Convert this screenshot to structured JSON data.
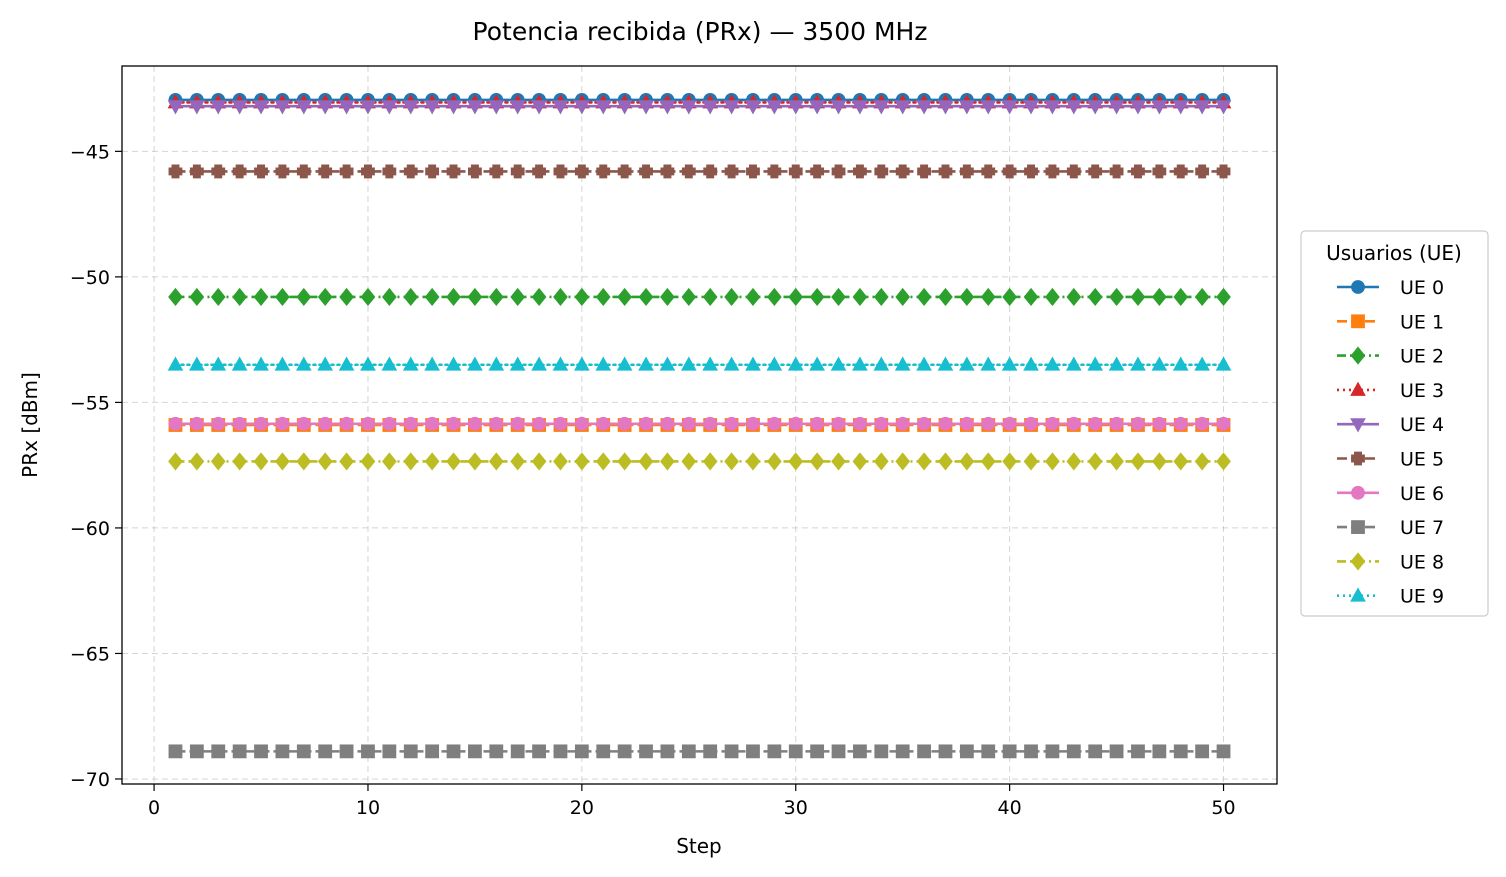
{
  "chart_data": {
    "type": "line",
    "title": "Potencia recibida (PRx) — 3500 MHz",
    "xlabel": "Step",
    "ylabel": "PRx [dBm]",
    "xlim": [
      -1.5,
      52.5
    ],
    "ylim": [
      -70.2,
      -41.6
    ],
    "xticks": [
      0,
      10,
      20,
      30,
      40,
      50
    ],
    "yticks": [
      -45,
      -50,
      -55,
      -60,
      -65,
      -70
    ],
    "xtick_labels": [
      "0",
      "10",
      "20",
      "30",
      "40",
      "50"
    ],
    "ytick_labels": [
      "−45",
      "−50",
      "−55",
      "−60",
      "−65",
      "−70"
    ],
    "grid": true,
    "legend_title": "Usuarios (UE)",
    "legend_position": "center-right-outside",
    "x": [
      1,
      2,
      3,
      4,
      5,
      6,
      7,
      8,
      9,
      10,
      11,
      12,
      13,
      14,
      15,
      16,
      17,
      18,
      19,
      20,
      21,
      22,
      23,
      24,
      25,
      26,
      27,
      28,
      29,
      30,
      31,
      32,
      33,
      34,
      35,
      36,
      37,
      38,
      39,
      40,
      41,
      42,
      43,
      44,
      45,
      46,
      47,
      48,
      49,
      50
    ],
    "series": [
      {
        "name": "UE 0",
        "value": -42.95,
        "color": "#1f77b4",
        "marker": "circle",
        "linestyle": "solid"
      },
      {
        "name": "UE 1",
        "value": -55.9,
        "color": "#ff7f0e",
        "marker": "square",
        "linestyle": "dashed"
      },
      {
        "name": "UE 2",
        "value": -50.8,
        "color": "#2ca02c",
        "marker": "diamond",
        "linestyle": "dashdot"
      },
      {
        "name": "UE 3",
        "value": -43.05,
        "color": "#d62728",
        "marker": "triangle-up",
        "linestyle": "dotted"
      },
      {
        "name": "UE 4",
        "value": -43.2,
        "color": "#9467bd",
        "marker": "triangle-down",
        "linestyle": "solid"
      },
      {
        "name": "UE 5",
        "value": -45.8,
        "color": "#8c564b",
        "marker": "plus",
        "linestyle": "dashed"
      },
      {
        "name": "UE 6",
        "value": -55.85,
        "color": "#e377c2",
        "marker": "circle",
        "linestyle": "solid"
      },
      {
        "name": "UE 7",
        "value": -68.9,
        "color": "#7f7f7f",
        "marker": "square",
        "linestyle": "dashed"
      },
      {
        "name": "UE 8",
        "value": -57.35,
        "color": "#bcbd22",
        "marker": "diamond",
        "linestyle": "dashdot"
      },
      {
        "name": "UE 9",
        "value": -53.5,
        "color": "#17becf",
        "marker": "triangle-up",
        "linestyle": "dotted"
      }
    ]
  }
}
